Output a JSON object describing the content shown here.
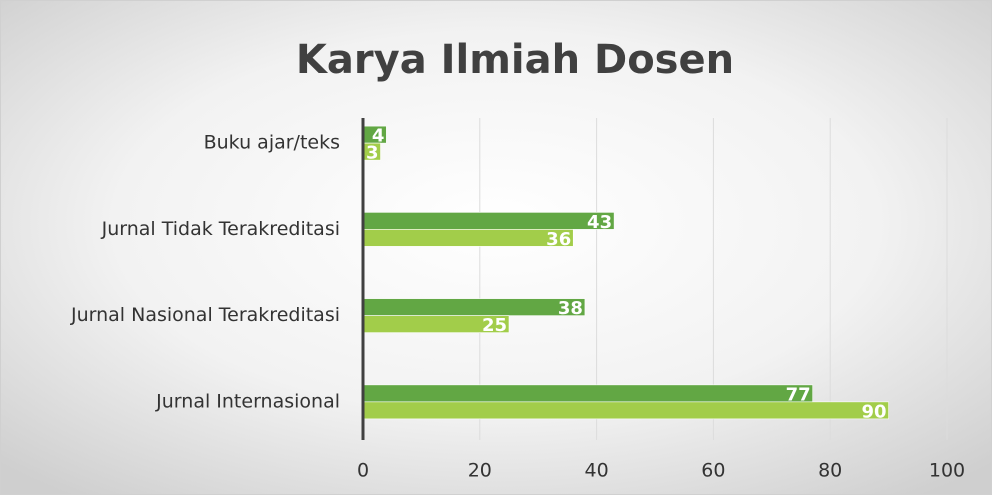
{
  "chart_data": {
    "type": "barh",
    "title": "Karya Ilmiah Dosen",
    "categories": [
      "Buku ajar/teks",
      "Jurnal Tidak Terakreditasi",
      "Jurnal Nasional Terakreditasi",
      "Jurnal Internasional"
    ],
    "series": [
      {
        "color": "#62a744",
        "values": [
          4,
          43,
          38,
          77
        ]
      },
      {
        "color": "#a2cd4a",
        "values": [
          3,
          36,
          25,
          90
        ]
      }
    ],
    "xlim": [
      0,
      100
    ],
    "xticks": [
      0,
      20,
      40,
      60,
      80,
      100
    ],
    "grid": true
  }
}
